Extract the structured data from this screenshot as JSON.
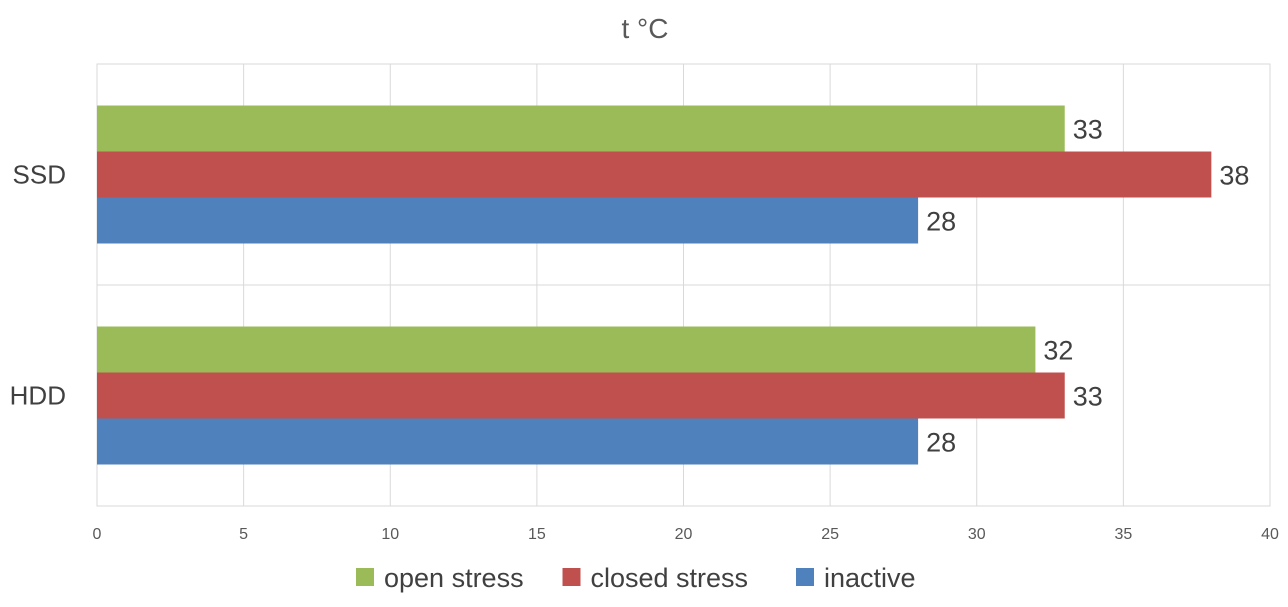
{
  "chart_data": {
    "type": "bar",
    "orientation": "horizontal",
    "title": "t °C",
    "xlabel": "",
    "ylabel": "",
    "categories": [
      "SSD",
      "HDD"
    ],
    "series": [
      {
        "name": "open stress",
        "values": [
          33,
          32
        ],
        "color": "#9BBB59"
      },
      {
        "name": "closed stress",
        "values": [
          38,
          33
        ],
        "color": "#C0504D"
      },
      {
        "name": "inactive",
        "values": [
          28,
          28
        ],
        "color": "#4F81BD"
      }
    ],
    "xlim": [
      0,
      40
    ],
    "xticks": [
      0,
      5,
      10,
      15,
      20,
      25,
      30,
      35,
      40
    ],
    "grid": true,
    "data_labels": true,
    "legend_position": "bottom"
  }
}
